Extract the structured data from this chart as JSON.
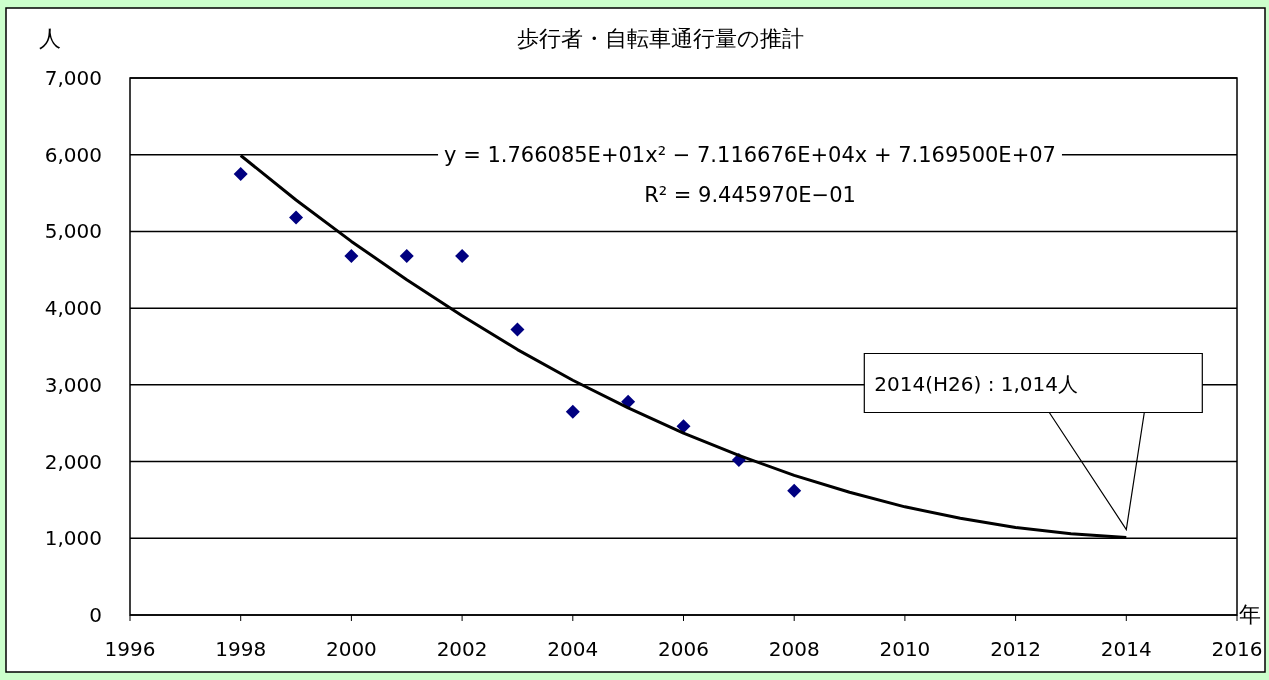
{
  "chart_data": {
    "type": "scatter",
    "title": "歩行者・自転車通行量の推計",
    "ylabel": "人",
    "xlabel": "年",
    "xlim": [
      1996,
      2016
    ],
    "ylim": [
      0,
      7000
    ],
    "xticks": [
      1996,
      1998,
      2000,
      2002,
      2004,
      2006,
      2008,
      2010,
      2012,
      2014,
      2016
    ],
    "yticks": [
      0,
      {
        "value": 1000,
        "label": "1,000"
      },
      {
        "value": 2000,
        "label": "2,000"
      },
      {
        "value": 3000,
        "label": "3,000"
      },
      {
        "value": 4000,
        "label": "4,000"
      },
      {
        "value": 5000,
        "label": "5,000"
      },
      {
        "value": 6000,
        "label": "6,000"
      },
      {
        "value": 7000,
        "label": "7,000"
      }
    ],
    "grid": "y",
    "series": [
      {
        "color": "#000080",
        "marker": "diamond",
        "x": [
          1998,
          1999,
          2000,
          2001,
          2002,
          2003,
          2004,
          2005,
          2006,
          2007,
          2008
        ],
        "values": [
          5750,
          5180,
          4680,
          4680,
          4680,
          3720,
          2650,
          2780,
          2460,
          2020,
          1620
        ]
      },
      {
        "type": "line",
        "color": "#000000",
        "marker": "none",
        "x": [
          1998,
          1999,
          2000,
          2001,
          2002,
          2003,
          2004,
          2005,
          2006,
          2007,
          2008,
          2009,
          2010,
          2011,
          2012,
          2013,
          2014
        ],
        "values": [
          5990,
          5410,
          4870,
          4370,
          3900,
          3460,
          3060,
          2700,
          2370,
          2080,
          1820,
          1600,
          1410,
          1260,
          1140,
          1060,
          1010
        ]
      }
    ],
    "annotations": [
      "y = 1.766085E+01x² − 7.116676E+04x + 7.169500E+07",
      "R² = 9.445970E−01",
      "2014(H26) : 1,014人"
    ]
  }
}
